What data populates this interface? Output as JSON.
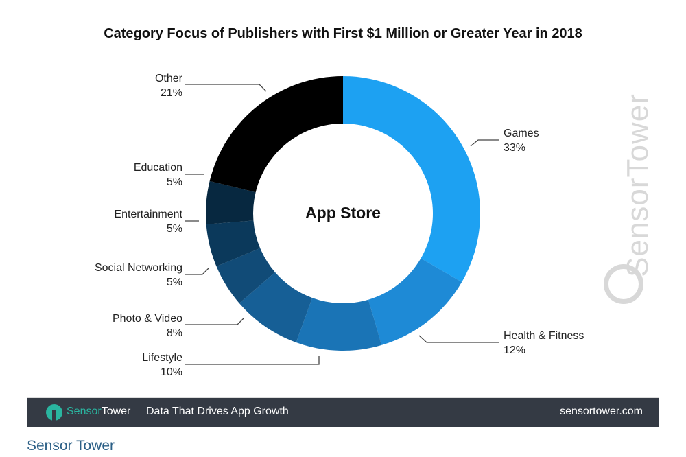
{
  "chart_data": {
    "type": "pie",
    "subtype": "donut",
    "title": "Category Focus of Publishers with First $1 Million or Greater Year in 2018",
    "center_label": "App Store",
    "slices": [
      {
        "label": "Games",
        "value": 33,
        "value_label": "33%",
        "color": "#1da1f2"
      },
      {
        "label": "Health & Fitness",
        "value": 12,
        "value_label": "12%",
        "color": "#1e8ad6"
      },
      {
        "label": "Lifestyle",
        "value": 10,
        "value_label": "10%",
        "color": "#1a74b6"
      },
      {
        "label": "Photo & Video",
        "value": 8,
        "value_label": "8%",
        "color": "#165f96"
      },
      {
        "label": "Social Networking",
        "value": 5,
        "value_label": "5%",
        "color": "#114b77"
      },
      {
        "label": "Entertainment",
        "value": 5,
        "value_label": "5%",
        "color": "#0b395b"
      },
      {
        "label": "Education",
        "value": 5,
        "value_label": "5%",
        "color": "#072840"
      },
      {
        "label": "Other",
        "value": 21,
        "value_label": "21%",
        "color": "#000000"
      }
    ]
  },
  "watermark": "SensorTower",
  "footer": {
    "brand_a": "Sensor",
    "brand_b": "Tower",
    "tagline": "Data That Drives App Growth",
    "url": "sensortower.com"
  },
  "source": "Sensor Tower"
}
